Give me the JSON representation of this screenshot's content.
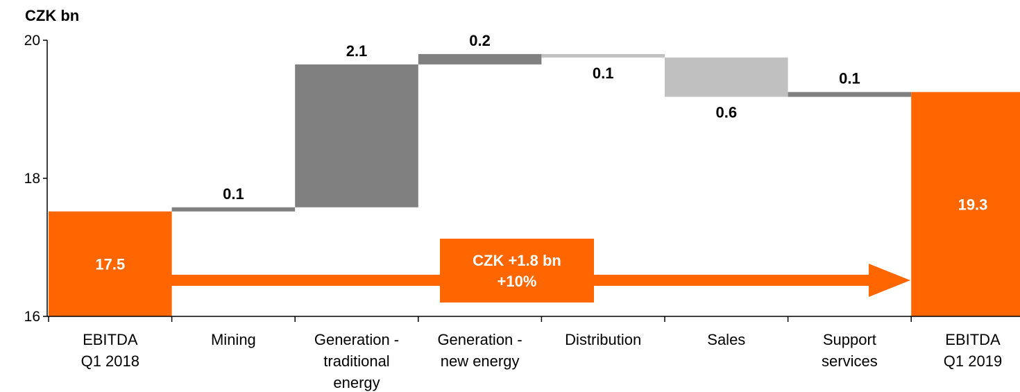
{
  "chart_data": {
    "type": "bar",
    "subtype": "waterfall",
    "unit_label": "CZK bn",
    "ylim": [
      16,
      20
    ],
    "yticks": [
      16,
      18,
      20
    ],
    "grid": false,
    "categories": [
      [
        "EBITDA",
        "Q1 2018"
      ],
      [
        "Mining"
      ],
      [
        "Generation -",
        "traditional",
        "energy"
      ],
      [
        "Generation -",
        "new energy"
      ],
      [
        "Distribution"
      ],
      [
        "Sales"
      ],
      [
        "Support",
        "services"
      ],
      [
        "EBITDA",
        "Q1 2019"
      ]
    ],
    "bars": [
      {
        "kind": "total",
        "start": 16,
        "end": 17.52,
        "label": "17.5",
        "color": "#ff6600"
      },
      {
        "kind": "delta",
        "start": 17.52,
        "end": 17.58,
        "label": "0.1",
        "color": "#808080"
      },
      {
        "kind": "delta",
        "start": 17.58,
        "end": 19.65,
        "label": "2.1",
        "color": "#808080"
      },
      {
        "kind": "delta",
        "start": 19.65,
        "end": 19.8,
        "label": "0.2",
        "color": "#808080"
      },
      {
        "kind": "delta",
        "start": 19.8,
        "end": 19.75,
        "label": "0.1",
        "color": "#c0c0c0"
      },
      {
        "kind": "delta",
        "start": 19.75,
        "end": 19.18,
        "label": "0.6",
        "color": "#c0c0c0"
      },
      {
        "kind": "delta",
        "start": 19.18,
        "end": 19.25,
        "label": "0.1",
        "color": "#808080"
      },
      {
        "kind": "total",
        "start": 16,
        "end": 19.25,
        "label": "19.3",
        "color": "#ff6600"
      }
    ],
    "annotation": {
      "lines": [
        "CZK +1.8 bn",
        "+10%"
      ],
      "color": "#ff6600"
    }
  }
}
